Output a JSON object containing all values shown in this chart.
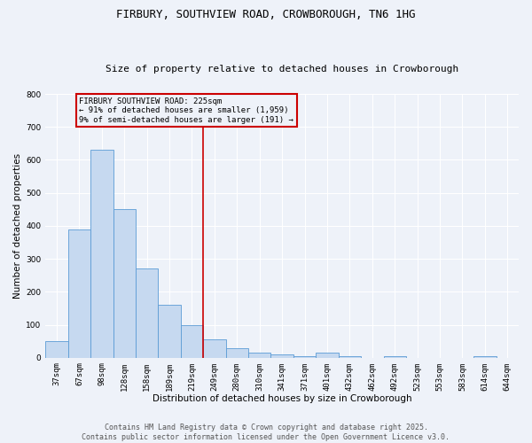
{
  "title": "FIRBURY, SOUTHVIEW ROAD, CROWBOROUGH, TN6 1HG",
  "subtitle": "Size of property relative to detached houses in Crowborough",
  "xlabel": "Distribution of detached houses by size in Crowborough",
  "ylabel": "Number of detached properties",
  "categories": [
    "37sqm",
    "67sqm",
    "98sqm",
    "128sqm",
    "158sqm",
    "189sqm",
    "219sqm",
    "249sqm",
    "280sqm",
    "310sqm",
    "341sqm",
    "371sqm",
    "401sqm",
    "432sqm",
    "462sqm",
    "492sqm",
    "523sqm",
    "553sqm",
    "583sqm",
    "614sqm",
    "644sqm"
  ],
  "bar_heights": [
    50,
    390,
    630,
    450,
    270,
    160,
    100,
    55,
    30,
    15,
    10,
    5,
    15,
    5,
    0,
    5,
    0,
    0,
    0,
    5,
    0
  ],
  "bar_color": "#c6d9f0",
  "bar_edge_color": "#5b9bd5",
  "ylim": [
    0,
    800
  ],
  "yticks": [
    0,
    100,
    200,
    300,
    400,
    500,
    600,
    700,
    800
  ],
  "red_line_color": "#cc0000",
  "annotation_text": "FIRBURY SOUTHVIEW ROAD: 225sqm\n← 91% of detached houses are smaller (1,959)\n9% of semi-detached houses are larger (191) →",
  "footer_line1": "Contains HM Land Registry data © Crown copyright and database right 2025.",
  "footer_line2": "Contains public sector information licensed under the Open Government Licence v3.0.",
  "background_color": "#eef2f9",
  "grid_color": "#ffffff",
  "title_fontsize": 9,
  "subtitle_fontsize": 8,
  "axis_label_fontsize": 7.5,
  "tick_fontsize": 6.5,
  "annotation_fontsize": 6.5,
  "footer_fontsize": 6.0
}
